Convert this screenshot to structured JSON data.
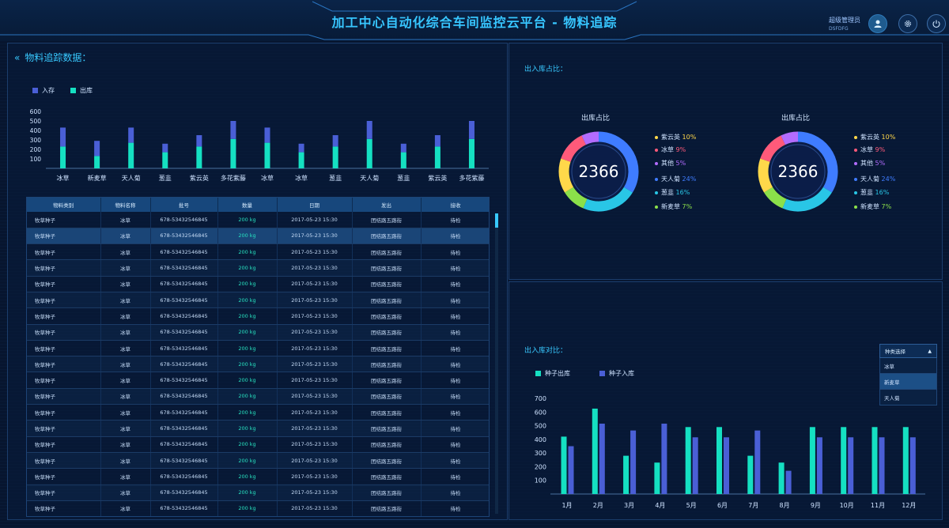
{
  "header": {
    "title": "加工中心自动化综合车间监控云平台 - 物料追踪",
    "user_name": "超级管理员",
    "user_id": "DSFDFG"
  },
  "left": {
    "section_title": "物料追踪数据：",
    "legend": [
      {
        "name": "入存",
        "color": "#4a5fd6"
      },
      {
        "name": "出库",
        "color": "#15e0c2"
      }
    ]
  },
  "chart_data": [
    {
      "type": "bar",
      "stacked": true,
      "categories": [
        "冰草",
        "新麦草",
        "天人菊",
        "葱韭",
        "紫云英",
        "多花紫藤",
        "冰草",
        "冰草",
        "葱韭",
        "天人菊",
        "葱韭",
        "紫云英",
        "多花紫藤"
      ],
      "series": [
        {
          "name": "出库",
          "values": [
            230,
            130,
            270,
            170,
            230,
            310,
            270,
            170,
            230,
            310,
            170,
            230,
            310
          ]
        },
        {
          "name": "入存",
          "values": [
            200,
            160,
            160,
            90,
            120,
            190,
            160,
            90,
            120,
            190,
            90,
            120,
            190
          ]
        }
      ],
      "yticks": [
        100,
        200,
        300,
        400,
        500,
        600
      ],
      "ylim": [
        0,
        600
      ],
      "legend_position": "top-left"
    },
    {
      "type": "pie",
      "title": "出库占比",
      "center_value": "2366",
      "slices": [
        {
          "name": "紫云英",
          "pct": "10%",
          "value": 10,
          "color": "#ffd84a"
        },
        {
          "name": "冰草",
          "pct": "9%",
          "value": 9,
          "color": "#ff5a7a"
        },
        {
          "name": "其他",
          "pct": "5%",
          "value": 5,
          "color": "#b36cff"
        },
        {
          "name": "天人菊",
          "pct": "24%",
          "value": 24,
          "color": "#3f7cff"
        },
        {
          "name": "葱韭",
          "pct": "16%",
          "value": 16,
          "color": "#29c6e6"
        },
        {
          "name": "新麦草",
          "pct": "7%",
          "value": 7,
          "color": "#8be04a"
        }
      ]
    },
    {
      "type": "pie",
      "title": "出库占比",
      "center_value": "2366",
      "slices": [
        {
          "name": "紫云英",
          "pct": "10%",
          "value": 10,
          "color": "#ffd84a"
        },
        {
          "name": "冰草",
          "pct": "9%",
          "value": 9,
          "color": "#ff5a7a"
        },
        {
          "name": "其他",
          "pct": "5%",
          "value": 5,
          "color": "#b36cff"
        },
        {
          "name": "天人菊",
          "pct": "24%",
          "value": 24,
          "color": "#3f7cff"
        },
        {
          "name": "葱韭",
          "pct": "16%",
          "value": 16,
          "color": "#29c6e6"
        },
        {
          "name": "新麦草",
          "pct": "7%",
          "value": 7,
          "color": "#8be04a"
        }
      ]
    },
    {
      "type": "bar",
      "categories": [
        "1月",
        "2月",
        "3月",
        "4月",
        "5月",
        "6月",
        "7月",
        "8月",
        "9月",
        "10月",
        "11月",
        "12月"
      ],
      "series": [
        {
          "name": "种子出库",
          "values": [
            420,
            625,
            280,
            230,
            490,
            490,
            280,
            230,
            490,
            490,
            490,
            490
          ],
          "color": "#15e0c2"
        },
        {
          "name": "种子入库",
          "values": [
            350,
            515,
            465,
            515,
            415,
            415,
            465,
            170,
            415,
            415,
            415,
            415
          ],
          "color": "#4a5fd6"
        }
      ],
      "yticks": [
        100,
        200,
        300,
        400,
        500,
        600,
        700
      ],
      "ylim": [
        0,
        700
      ],
      "legend_position": "top-left"
    }
  ],
  "table": {
    "headers": [
      "物料类别",
      "物料名称",
      "批号",
      "数量",
      "日期",
      "发出",
      "接收"
    ],
    "rows": [
      [
        "牧草种子",
        "冰草",
        "678-53432546845",
        "200 kg",
        "2017-05-23  15:30",
        "团结路五路街",
        "待检"
      ],
      [
        "牧草种子",
        "冰草",
        "678-53432546845",
        "200 kg",
        "2017-05-23  15:30",
        "团结路五路街",
        "待检"
      ],
      [
        "牧草种子",
        "冰草",
        "678-53432546845",
        "200 kg",
        "2017-05-23  15:30",
        "团结路五路街",
        "待检"
      ],
      [
        "牧草种子",
        "冰草",
        "678-53432546845",
        "200 kg",
        "2017-05-23  15:30",
        "团结路五路街",
        "待检"
      ],
      [
        "牧草种子",
        "冰草",
        "678-53432546845",
        "200 kg",
        "2017-05-23  15:30",
        "团结路五路街",
        "待检"
      ],
      [
        "牧草种子",
        "冰草",
        "678-53432546845",
        "200 kg",
        "2017-05-23  15:30",
        "团结路五路街",
        "待检"
      ],
      [
        "牧草种子",
        "冰草",
        "678-53432546845",
        "200 kg",
        "2017-05-23  15:30",
        "团结路五路街",
        "待检"
      ],
      [
        "牧草种子",
        "冰草",
        "678-53432546845",
        "200 kg",
        "2017-05-23  15:30",
        "团结路五路街",
        "待检"
      ],
      [
        "牧草种子",
        "冰草",
        "678-53432546845",
        "200 kg",
        "2017-05-23  15:30",
        "团结路五路街",
        "待检"
      ],
      [
        "牧草种子",
        "冰草",
        "678-53432546845",
        "200 kg",
        "2017-05-23  15:30",
        "团结路五路街",
        "待检"
      ],
      [
        "牧草种子",
        "冰草",
        "678-53432546845",
        "200 kg",
        "2017-05-23  15:30",
        "团结路五路街",
        "待检"
      ],
      [
        "牧草种子",
        "冰草",
        "678-53432546845",
        "200 kg",
        "2017-05-23  15:30",
        "团结路五路街",
        "待检"
      ],
      [
        "牧草种子",
        "冰草",
        "678-53432546845",
        "200 kg",
        "2017-05-23  15:30",
        "团结路五路街",
        "待检"
      ],
      [
        "牧草种子",
        "冰草",
        "678-53432546845",
        "200 kg",
        "2017-05-23  15:30",
        "团结路五路街",
        "待检"
      ],
      [
        "牧草种子",
        "冰草",
        "678-53432546845",
        "200 kg",
        "2017-05-23  15:30",
        "团结路五路街",
        "待检"
      ],
      [
        "牧草种子",
        "冰草",
        "678-53432546845",
        "200 kg",
        "2017-05-23  15:30",
        "团结路五路街",
        "待检"
      ],
      [
        "牧草种子",
        "冰草",
        "678-53432546845",
        "200 kg",
        "2017-05-23  15:30",
        "团结路五路街",
        "待检"
      ],
      [
        "牧草种子",
        "冰草",
        "678-53432546845",
        "200 kg",
        "2017-05-23  15:30",
        "团结路五路街",
        "待检"
      ],
      [
        "牧草种子",
        "冰草",
        "678-53432546845",
        "200 kg",
        "2017-05-23  15:30",
        "团结路五路街",
        "待检"
      ]
    ]
  },
  "right_top": {
    "section_title": "出入库占比："
  },
  "right_bottom": {
    "section_title": "出入库对比：",
    "dropdown": {
      "label": "种类选择",
      "options": [
        "冰草",
        "新麦草",
        "天人菊"
      ],
      "selected": "新麦草"
    }
  }
}
